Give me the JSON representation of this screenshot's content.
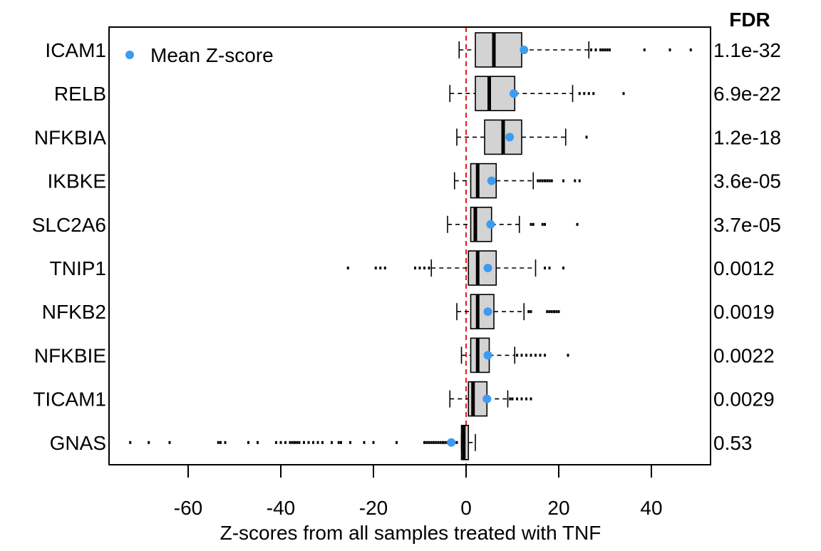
{
  "chart_data": {
    "type": "boxplot",
    "orientation": "horizontal",
    "xlabel": "Z-scores from all samples treated with TNF",
    "xlim": [
      -77,
      53
    ],
    "xticks": [
      -60,
      -40,
      -20,
      0,
      20,
      40
    ],
    "reference_line": {
      "x": 0,
      "color": "#e31a1c",
      "style": "dashed"
    },
    "legend": {
      "label": "Mean Z-score",
      "color": "#3d9bf0",
      "position": "top-left"
    },
    "fdr_title": "FDR",
    "colors": {
      "box_fill": "#d3d3d3",
      "mean_point": "#3d9bf0"
    },
    "categories": [
      {
        "name": "ICAM1",
        "fdr": "1.1e-32",
        "whisker_low": -1.5,
        "q1": 2,
        "median": 6,
        "q3": 12,
        "whisker_high": 26.5,
        "mean": 12.5,
        "outliers": [
          27,
          28,
          29,
          29.5,
          30,
          30.5,
          31,
          38.5,
          44,
          48.5
        ]
      },
      {
        "name": "RELB",
        "fdr": "6.9e-22",
        "whisker_low": -3.5,
        "q1": 2,
        "median": 5,
        "q3": 10.5,
        "whisker_high": 23,
        "mean": 10.3,
        "outliers": [
          24.5,
          25.5,
          26.5,
          27.5,
          34
        ]
      },
      {
        "name": "NFKBIA",
        "fdr": "1.2e-18",
        "whisker_low": -2,
        "q1": 4,
        "median": 8,
        "q3": 12,
        "whisker_high": 21.5,
        "mean": 9.4,
        "outliers": [
          26
        ]
      },
      {
        "name": "IKBKE",
        "fdr": "3.6e-05",
        "whisker_low": -2.5,
        "q1": 1,
        "median": 2.5,
        "q3": 6.5,
        "whisker_high": 14.5,
        "mean": 5.5,
        "outliers": [
          15.5,
          16,
          16.5,
          17,
          17.5,
          18,
          18.5,
          21,
          23.5,
          24.5
        ]
      },
      {
        "name": "SLC2A6",
        "fdr": "3.7e-05",
        "whisker_low": -4,
        "q1": 1,
        "median": 2,
        "q3": 5.5,
        "whisker_high": 11.5,
        "mean": 5.3,
        "outliers": [
          14,
          14.5,
          16.5,
          17,
          24
        ]
      },
      {
        "name": "TNIP1",
        "fdr": "0.0012",
        "whisker_low": -7.5,
        "q1": 0.5,
        "median": 2.5,
        "q3": 6.5,
        "whisker_high": 15,
        "mean": 4.7,
        "outliers": [
          -25.5,
          -19.5,
          -18.5,
          -17.5,
          -11,
          -10,
          -9,
          -8,
          17,
          18,
          21
        ]
      },
      {
        "name": "NFKB2",
        "fdr": "0.0019",
        "whisker_low": -2,
        "q1": 1,
        "median": 2.5,
        "q3": 6,
        "whisker_high": 12.5,
        "mean": 4.7,
        "outliers": [
          13.5,
          14,
          17.5,
          18,
          18.5,
          19,
          19.5,
          20
        ]
      },
      {
        "name": "NFKBIE",
        "fdr": "0.0022",
        "whisker_low": -1,
        "q1": 1,
        "median": 2.5,
        "q3": 5,
        "whisker_high": 10.5,
        "mean": 4.7,
        "outliers": [
          11,
          12,
          13,
          14,
          15,
          16,
          17,
          22
        ]
      },
      {
        "name": "TICAM1",
        "fdr": "0.0029",
        "whisker_low": -3.5,
        "q1": 0.5,
        "median": 1.5,
        "q3": 4.5,
        "whisker_high": 9,
        "mean": 4.5,
        "outliers": [
          9.5,
          10,
          11,
          12,
          13,
          14
        ]
      },
      {
        "name": "GNAS",
        "fdr": "0.53",
        "whisker_low": -1,
        "q1": -1,
        "median": -0.5,
        "q3": 0.5,
        "whisker_high": 2,
        "mean": -3.2,
        "outliers": [
          -72.5,
          -68.5,
          -64,
          -53.5,
          -53,
          -52,
          -47,
          -45,
          -41,
          -40,
          -39,
          -38,
          -37.5,
          -37,
          -36.5,
          -36,
          -35,
          -34,
          -33,
          -32,
          -31,
          -29,
          -27.5,
          -27,
          -25,
          -22,
          -20,
          -15,
          -9,
          -8.5,
          -8,
          -7.5,
          -7,
          -6.5,
          -6,
          -5.5,
          -5,
          -4.5,
          -4,
          -3.5,
          -3,
          -2.5,
          -2
        ]
      }
    ]
  }
}
